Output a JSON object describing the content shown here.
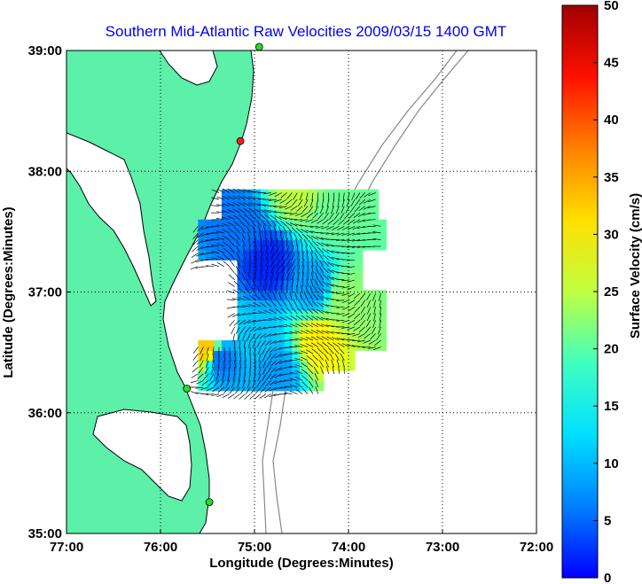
{
  "title": "Southern Mid-Atlantic Raw Velocities 2009/03/15 1400 GMT",
  "x_axis": {
    "label": "Longitude (Degrees:Minutes)",
    "ticks": [
      {
        "value": -77,
        "label": "77:00"
      },
      {
        "value": -76,
        "label": "76:00"
      },
      {
        "value": -75,
        "label": "75:00"
      },
      {
        "value": -74,
        "label": "74:00"
      },
      {
        "value": -73,
        "label": "73:00"
      },
      {
        "value": -72,
        "label": "72:00"
      }
    ],
    "range": [
      -77,
      -72
    ]
  },
  "y_axis": {
    "label": "Latitude (Degrees:Minutes)",
    "ticks": [
      {
        "value": 35,
        "label": "35:00"
      },
      {
        "value": 36,
        "label": "36:00"
      },
      {
        "value": 37,
        "label": "37:00"
      },
      {
        "value": 38,
        "label": "38:00"
      },
      {
        "value": 39,
        "label": "39:00"
      }
    ],
    "range": [
      35,
      39
    ]
  },
  "colorbar": {
    "label": "Surface Velocity (cm/s)",
    "range": [
      0,
      50
    ],
    "ticks": [
      {
        "value": 0,
        "label": "0"
      },
      {
        "value": 5,
        "label": "5"
      },
      {
        "value": 10,
        "label": "10"
      },
      {
        "value": 15,
        "label": "15"
      },
      {
        "value": 20,
        "label": "20"
      },
      {
        "value": 25,
        "label": "25"
      },
      {
        "value": 30,
        "label": "30"
      },
      {
        "value": 35,
        "label": "35"
      },
      {
        "value": 40,
        "label": "40"
      },
      {
        "value": 45,
        "label": "45"
      },
      {
        "value": 50,
        "label": "50"
      }
    ],
    "colormap": "jet"
  },
  "colors": {
    "land": "#5cf0a8",
    "coast": "#000000",
    "bathymetry": "#888888",
    "grid": "#000000",
    "station_green": "#22dd22",
    "station_red": "#ee2222"
  },
  "grid": true,
  "stations": [
    {
      "lon": -74.95,
      "lat": 39.03,
      "status": "green"
    },
    {
      "lon": -75.15,
      "lat": 38.25,
      "status": "red"
    },
    {
      "lon": -75.72,
      "lat": 36.2,
      "status": "green"
    },
    {
      "lon": -75.48,
      "lat": 35.26,
      "status": "green"
    }
  ],
  "velocity_field": {
    "region": {
      "lon_min": -75.6,
      "lon_max": -73.6,
      "lat_min": 36.1,
      "lat_max": 37.9
    },
    "samples": [
      {
        "lon": -74.6,
        "lat": 37.8,
        "speed": 28
      },
      {
        "lon": -74.2,
        "lat": 37.6,
        "speed": 24
      },
      {
        "lon": -75.2,
        "lat": 37.5,
        "speed": 12
      },
      {
        "lon": -74.9,
        "lat": 37.2,
        "speed": 8
      },
      {
        "lon": -74.4,
        "lat": 37.0,
        "speed": 14
      },
      {
        "lon": -74.1,
        "lat": 36.9,
        "speed": 26
      },
      {
        "lon": -74.35,
        "lat": 36.55,
        "speed": 32
      },
      {
        "lon": -75.0,
        "lat": 36.6,
        "speed": 16
      },
      {
        "lon": -75.4,
        "lat": 36.4,
        "speed": 12
      },
      {
        "lon": -75.55,
        "lat": 36.5,
        "speed": 34
      },
      {
        "lon": -74.8,
        "lat": 36.3,
        "speed": 14
      }
    ]
  }
}
